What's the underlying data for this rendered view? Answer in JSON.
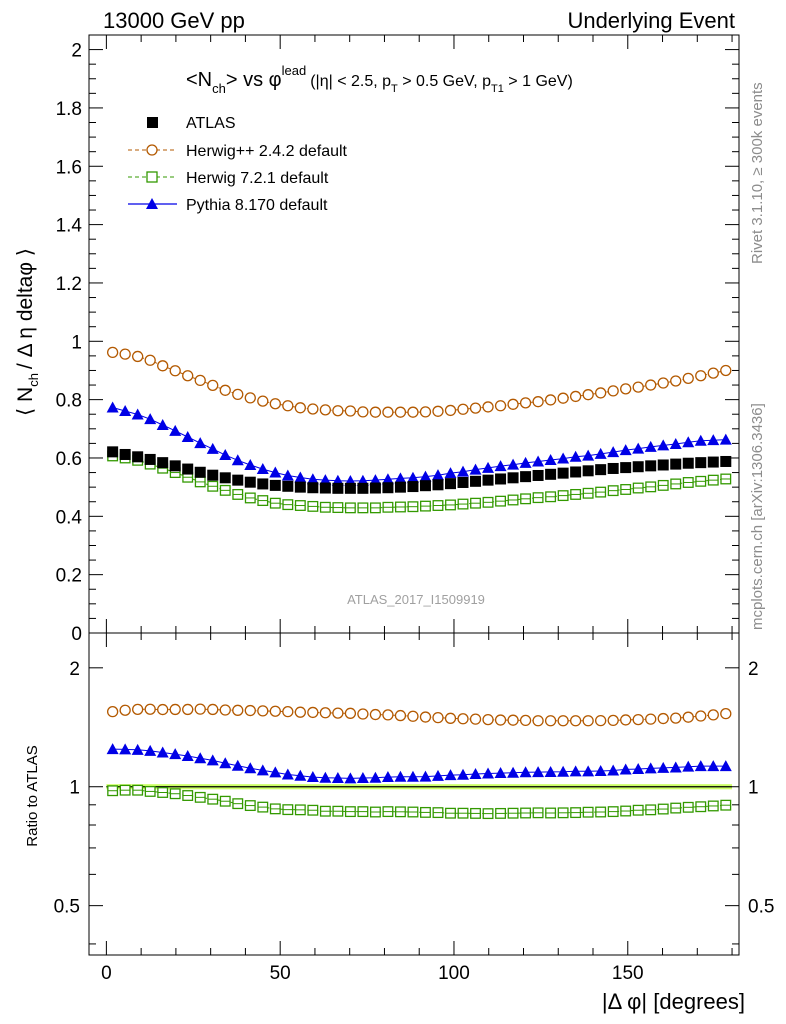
{
  "header": {
    "left": "13000 GeV pp",
    "right": "Underlying Event"
  },
  "title": {
    "main": "<N",
    "main_sub": "ch",
    "main_vs": "> vs φ",
    "main_sup": "lead",
    "cut_a": "(|η| < 2.5, p",
    "cut_sub1": "T",
    "cut_b": " > 0.5 GeV, p",
    "cut_sub2": "T1",
    "cut_c": " > 1 GeV)"
  },
  "side_labels": {
    "rivet": "Rivet 3.1.10, ≥ 300k events",
    "mcplots": "mcplots.cern.ch [arXiv:1306.3436]"
  },
  "analysis_label": "ATLAS_2017_I1509919",
  "axes": {
    "ylabel_main": "⟨ N",
    "ylabel_main_sub": "ch",
    "ylabel_main_rest": "/ Δ η deltaφ ⟩",
    "ylabel_ratio": "Ratio to ATLAS",
    "xlabel": "|Δ φ| [degrees]"
  },
  "legend": {
    "atlas": "ATLAS",
    "herwigpp": "Herwig++ 2.4.2 default",
    "herwig7": "Herwig 7.2.1 default",
    "pythia": "Pythia 8.170 default"
  },
  "colors": {
    "atlas": "#000000",
    "herwigpp": "#b35900",
    "herwig7": "#339900",
    "pythia": "#0000e6",
    "band": "#ccff66"
  },
  "chart_data": {
    "type": "scatter",
    "x": [
      1.8,
      5.4,
      9.0,
      12.6,
      16.2,
      19.8,
      23.4,
      27.0,
      30.6,
      34.2,
      37.8,
      41.4,
      45.0,
      48.6,
      52.2,
      55.8,
      59.4,
      63.0,
      66.6,
      70.2,
      73.8,
      77.4,
      81.0,
      84.6,
      88.2,
      91.8,
      95.4,
      99.0,
      102.6,
      106.2,
      109.8,
      113.4,
      117.0,
      120.6,
      124.2,
      127.8,
      131.4,
      135.0,
      138.6,
      142.2,
      145.8,
      149.4,
      153.0,
      156.6,
      160.2,
      163.8,
      167.4,
      171.0,
      174.6,
      178.2
    ],
    "xlim": [
      -5,
      182
    ],
    "xticks": [
      0,
      50,
      100,
      150
    ],
    "main": {
      "ylim": [
        0,
        2.05
      ],
      "yticks": [
        0,
        0.2,
        0.4,
        0.6,
        0.8,
        1,
        1.2,
        1.4,
        1.6,
        1.8,
        2
      ],
      "series": [
        {
          "name": "ATLAS",
          "values": [
            0.621,
            0.612,
            0.604,
            0.595,
            0.584,
            0.573,
            0.562,
            0.551,
            0.541,
            0.532,
            0.524,
            0.517,
            0.511,
            0.506,
            0.503,
            0.5,
            0.498,
            0.497,
            0.496,
            0.496,
            0.496,
            0.497,
            0.498,
            0.5,
            0.502,
            0.505,
            0.508,
            0.512,
            0.516,
            0.52,
            0.524,
            0.528,
            0.532,
            0.536,
            0.54,
            0.544,
            0.548,
            0.552,
            0.556,
            0.56,
            0.564,
            0.567,
            0.57,
            0.573,
            0.576,
            0.579,
            0.582,
            0.584,
            0.586,
            0.588
          ]
        },
        {
          "name": "Herwig++ 2.4.2 default",
          "values": [
            0.962,
            0.956,
            0.948,
            0.935,
            0.916,
            0.899,
            0.882,
            0.866,
            0.849,
            0.832,
            0.818,
            0.806,
            0.795,
            0.786,
            0.779,
            0.772,
            0.768,
            0.765,
            0.762,
            0.761,
            0.758,
            0.757,
            0.757,
            0.757,
            0.757,
            0.758,
            0.76,
            0.763,
            0.767,
            0.771,
            0.775,
            0.779,
            0.784,
            0.789,
            0.793,
            0.799,
            0.805,
            0.811,
            0.817,
            0.823,
            0.83,
            0.837,
            0.843,
            0.85,
            0.857,
            0.864,
            0.873,
            0.882,
            0.891,
            0.9
          ]
        },
        {
          "name": "Herwig 7.2.1 default",
          "values": [
            0.607,
            0.6,
            0.592,
            0.579,
            0.565,
            0.55,
            0.534,
            0.518,
            0.503,
            0.489,
            0.475,
            0.463,
            0.454,
            0.445,
            0.44,
            0.437,
            0.434,
            0.431,
            0.43,
            0.429,
            0.429,
            0.429,
            0.431,
            0.432,
            0.433,
            0.435,
            0.437,
            0.439,
            0.442,
            0.445,
            0.448,
            0.452,
            0.456,
            0.46,
            0.464,
            0.467,
            0.471,
            0.475,
            0.479,
            0.483,
            0.488,
            0.492,
            0.497,
            0.501,
            0.506,
            0.511,
            0.516,
            0.52,
            0.524,
            0.528
          ]
        },
        {
          "name": "Pythia 8.170 default",
          "values": [
            0.773,
            0.761,
            0.749,
            0.733,
            0.713,
            0.693,
            0.672,
            0.651,
            0.631,
            0.61,
            0.592,
            0.576,
            0.562,
            0.55,
            0.54,
            0.533,
            0.527,
            0.524,
            0.522,
            0.521,
            0.522,
            0.524,
            0.527,
            0.53,
            0.532,
            0.536,
            0.541,
            0.548,
            0.553,
            0.56,
            0.566,
            0.572,
            0.577,
            0.583,
            0.588,
            0.593,
            0.598,
            0.604,
            0.608,
            0.614,
            0.62,
            0.627,
            0.632,
            0.638,
            0.643,
            0.648,
            0.654,
            0.659,
            0.661,
            0.663
          ]
        }
      ]
    },
    "ratio": {
      "ylim": [
        0.375,
        2.45
      ],
      "ylog": true,
      "yticks": [
        0.5,
        1,
        2
      ],
      "band": [
        0.985,
        1.015
      ],
      "series": [
        {
          "name": "Herwig++ 2.4.2 default",
          "values": [
            1.549,
            1.562,
            1.57,
            1.571,
            1.568,
            1.569,
            1.569,
            1.572,
            1.569,
            1.564,
            1.561,
            1.559,
            1.556,
            1.553,
            1.549,
            1.544,
            1.542,
            1.539,
            1.536,
            1.534,
            1.528,
            1.523,
            1.52,
            1.514,
            1.508,
            1.501,
            1.496,
            1.49,
            1.486,
            1.483,
            1.479,
            1.475,
            1.474,
            1.472,
            1.469,
            1.469,
            1.469,
            1.469,
            1.469,
            1.47,
            1.472,
            1.476,
            1.479,
            1.483,
            1.488,
            1.492,
            1.5,
            1.51,
            1.52,
            1.531
          ]
        },
        {
          "name": "Herwig 7.2.1 default",
          "values": [
            0.977,
            0.98,
            0.98,
            0.973,
            0.967,
            0.96,
            0.95,
            0.94,
            0.93,
            0.919,
            0.906,
            0.896,
            0.888,
            0.879,
            0.875,
            0.874,
            0.872,
            0.867,
            0.867,
            0.865,
            0.865,
            0.863,
            0.865,
            0.864,
            0.863,
            0.861,
            0.86,
            0.857,
            0.857,
            0.856,
            0.855,
            0.856,
            0.857,
            0.858,
            0.859,
            0.858,
            0.859,
            0.86,
            0.862,
            0.863,
            0.865,
            0.868,
            0.872,
            0.874,
            0.878,
            0.883,
            0.887,
            0.89,
            0.894,
            0.898
          ]
        },
        {
          "name": "Pythia 8.170 default",
          "values": [
            1.245,
            1.243,
            1.24,
            1.232,
            1.221,
            1.209,
            1.196,
            1.181,
            1.166,
            1.147,
            1.13,
            1.114,
            1.1,
            1.087,
            1.074,
            1.066,
            1.058,
            1.054,
            1.052,
            1.05,
            1.052,
            1.054,
            1.058,
            1.06,
            1.06,
            1.061,
            1.065,
            1.07,
            1.072,
            1.077,
            1.08,
            1.083,
            1.085,
            1.088,
            1.089,
            1.09,
            1.091,
            1.094,
            1.094,
            1.096,
            1.099,
            1.106,
            1.109,
            1.113,
            1.116,
            1.119,
            1.124,
            1.128,
            1.128,
            1.128
          ]
        }
      ]
    }
  }
}
